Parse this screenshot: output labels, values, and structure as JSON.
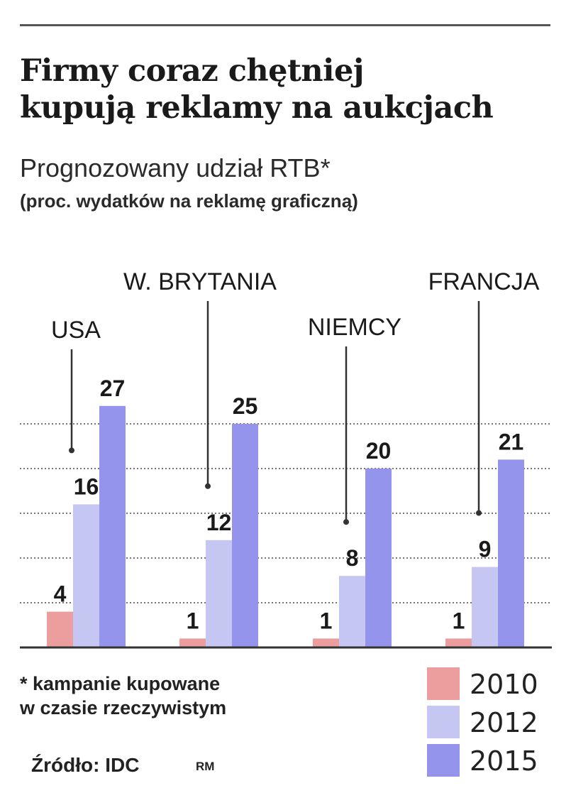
{
  "title_line1": "Firmy coraz chętniej",
  "title_line2": "kupują reklamy na aukcjach",
  "subtitle": "Prognozowany udział RTB*",
  "subtitle_note": "(proc. wydatków na reklamę graficzną)",
  "footnote_line1": "* kampanie kupowane",
  "footnote_line2": "w czasie rzeczywistym",
  "source": "Źródło: IDC",
  "credit": "RM",
  "chart_data": {
    "type": "bar",
    "categories": [
      "USA",
      "W. BRYTANIA",
      "NIEMCY",
      "FRANCJA"
    ],
    "series": [
      {
        "name": "2010",
        "values": [
          4,
          1,
          1,
          1
        ],
        "color": "#ec9e9e"
      },
      {
        "name": "2012",
        "values": [
          16,
          12,
          8,
          9
        ],
        "color": "#c6c6f2"
      },
      {
        "name": "2015",
        "values": [
          27,
          25,
          20,
          21
        ],
        "color": "#9494ec"
      }
    ],
    "ylim": [
      0,
      30
    ],
    "grid": true,
    "legend_position": "bottom-right"
  }
}
